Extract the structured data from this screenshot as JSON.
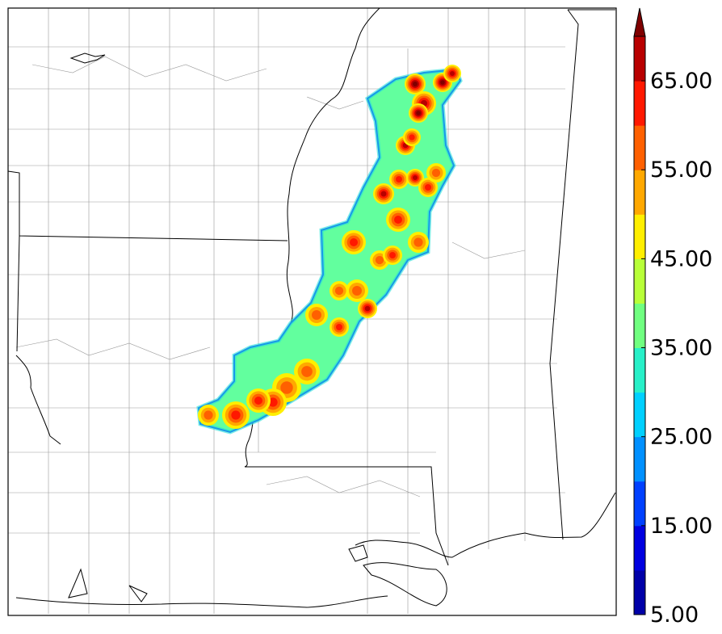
{
  "map": {
    "radar_field": {
      "cores": [
        {
          "v": 70
        },
        {
          "v": 70
        },
        {
          "v": 68
        },
        {
          "v": 66
        },
        {
          "v": 70
        },
        {
          "v": 66
        },
        {
          "v": 62
        },
        {
          "v": 60
        },
        {
          "v": 66
        },
        {
          "v": 60
        },
        {
          "v": 58
        },
        {
          "v": 66
        },
        {
          "v": 60
        },
        {
          "v": 62
        },
        {
          "v": 58
        },
        {
          "v": 58
        },
        {
          "v": 60
        },
        {
          "v": 56
        },
        {
          "v": 56
        },
        {
          "v": 56
        },
        {
          "v": 66
        },
        {
          "v": 62
        },
        {
          "v": 56
        },
        {
          "v": 58
        },
        {
          "v": 60
        },
        {
          "v": 60
        },
        {
          "v": 62
        },
        {
          "v": 56
        }
      ]
    }
  },
  "colorbar": {
    "min": 5,
    "max": 70,
    "step": 5,
    "extend": "max",
    "colors": [
      "#0000a8",
      "#0000e0",
      "#0040ff",
      "#0090ff",
      "#00d0ff",
      "#28f0c8",
      "#70ff80",
      "#b8ff38",
      "#ffef00",
      "#ffa800",
      "#ff6000",
      "#ff1800",
      "#b80000",
      "#800000"
    ],
    "labels": [
      "5.00",
      "15.00",
      "25.00",
      "35.00",
      "45.00",
      "55.00",
      "65.00"
    ]
  }
}
